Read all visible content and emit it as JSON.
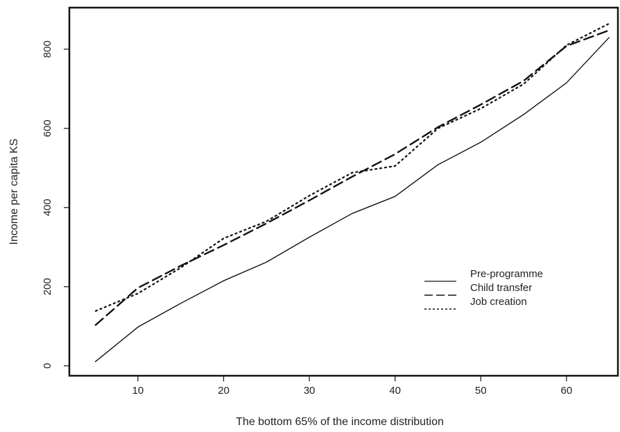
{
  "chart_data": {
    "type": "line",
    "title": "",
    "xlabel": "The bottom 65% of the income distribution",
    "ylabel": "Income per capita KS",
    "xlim": [
      2,
      66
    ],
    "ylim": [
      -25,
      905
    ],
    "x_ticks": [
      10,
      20,
      30,
      40,
      50,
      60
    ],
    "y_ticks": [
      0,
      200,
      400,
      600,
      800
    ],
    "grid": false,
    "legend_position": "bottom-right",
    "x": [
      5,
      10,
      15,
      20,
      25,
      30,
      35,
      40,
      45,
      50,
      55,
      60,
      65
    ],
    "series": [
      {
        "name": "Pre-programme",
        "dash": "solid",
        "values": [
          10,
          98,
          158,
          215,
          262,
          325,
          385,
          428,
          508,
          565,
          635,
          715,
          830
        ]
      },
      {
        "name": "Child transfer",
        "dash": "longdash",
        "values": [
          102,
          197,
          253,
          305,
          360,
          418,
          478,
          535,
          603,
          660,
          720,
          808,
          848
        ]
      },
      {
        "name": "Job creation",
        "dash": "dotted",
        "values": [
          138,
          183,
          248,
          322,
          365,
          430,
          488,
          505,
          600,
          650,
          712,
          810,
          865
        ]
      }
    ]
  }
}
